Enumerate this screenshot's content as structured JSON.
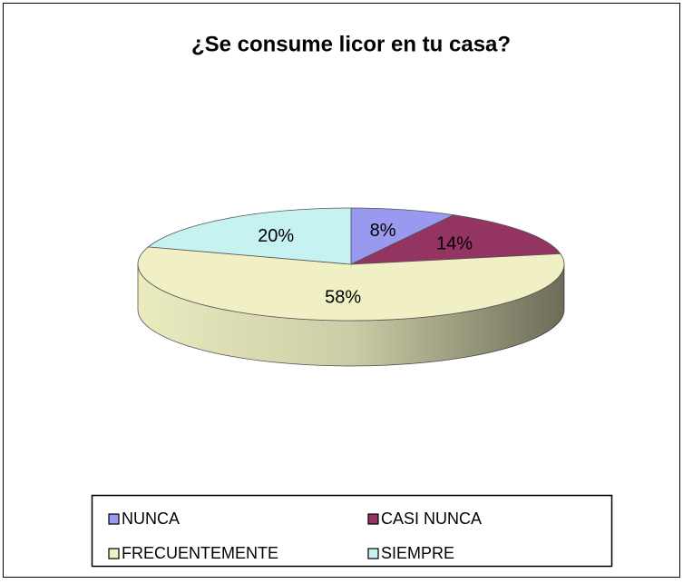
{
  "chart_data": {
    "type": "pie",
    "title": "¿Se consume licor en tu casa?",
    "categories": [
      "NUNCA",
      "CASI NUNCA",
      "FRECUENTEMENTE",
      "SIEMPRE"
    ],
    "values": [
      8,
      14,
      58,
      20
    ],
    "value_labels": [
      "8%",
      "14%",
      "58%",
      "20%"
    ],
    "colors": [
      "#9999f0",
      "#933463",
      "#f0f0c4",
      "#c6f2f2"
    ],
    "legend": "bottom"
  }
}
